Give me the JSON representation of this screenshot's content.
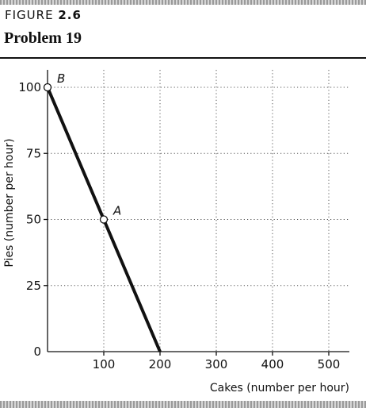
{
  "header": {
    "figure_word": "FIGURE",
    "figure_number": "2.6",
    "title": "Problem 19"
  },
  "chart_data": {
    "type": "line",
    "xlabel": "Cakes (number per hour)",
    "ylabel": "Pies (number per hour)",
    "xlim": [
      0,
      550
    ],
    "ylim": [
      0,
      110
    ],
    "x_ticks": [
      100,
      200,
      300,
      400,
      500
    ],
    "y_ticks": [
      0,
      25,
      50,
      75,
      100
    ],
    "grid": "dotted",
    "series": [
      {
        "x": [
          0,
          100,
          200
        ],
        "y": [
          100,
          50,
          0
        ],
        "color": "#111111"
      }
    ],
    "points": [
      {
        "label": "B",
        "x": 0,
        "y": 100
      },
      {
        "label": "A",
        "x": 100,
        "y": 50
      }
    ]
  }
}
